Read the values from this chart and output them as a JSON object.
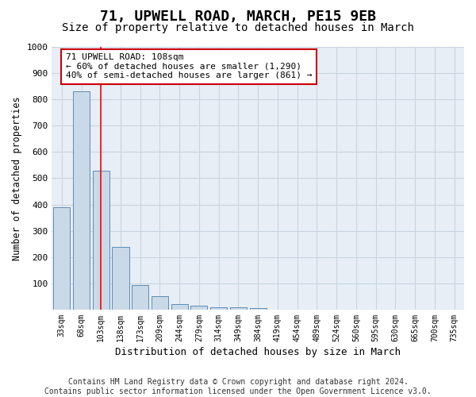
{
  "title": "71, UPWELL ROAD, MARCH, PE15 9EB",
  "subtitle": "Size of property relative to detached houses in March",
  "xlabel": "Distribution of detached houses by size in March",
  "ylabel": "Number of detached properties",
  "bar_color": "#c9d9e8",
  "bar_edge_color": "#5b8db8",
  "categories": [
    "33sqm",
    "68sqm",
    "103sqm",
    "138sqm",
    "173sqm",
    "209sqm",
    "244sqm",
    "279sqm",
    "314sqm",
    "349sqm",
    "384sqm",
    "419sqm",
    "454sqm",
    "489sqm",
    "524sqm",
    "560sqm",
    "595sqm",
    "630sqm",
    "665sqm",
    "700sqm",
    "735sqm"
  ],
  "values": [
    390,
    830,
    530,
    240,
    95,
    50,
    20,
    15,
    10,
    8,
    5,
    0,
    0,
    0,
    0,
    0,
    0,
    0,
    0,
    0,
    0
  ],
  "red_line_index": 2,
  "annotation_text": "71 UPWELL ROAD: 108sqm\n← 60% of detached houses are smaller (1,290)\n40% of semi-detached houses are larger (861) →",
  "annotation_box_facecolor": "#ffffff",
  "annotation_edge_color": "#cc0000",
  "ylim": [
    0,
    1000
  ],
  "yticks": [
    0,
    100,
    200,
    300,
    400,
    500,
    600,
    700,
    800,
    900,
    1000
  ],
  "grid_color": "#c8d4e0",
  "background_color": "#e8eef5",
  "footer_line1": "Contains HM Land Registry data © Crown copyright and database right 2024.",
  "footer_line2": "Contains public sector information licensed under the Open Government Licence v3.0.",
  "title_fontsize": 13,
  "subtitle_fontsize": 10,
  "xlabel_fontsize": 9,
  "ylabel_fontsize": 8.5,
  "annotation_fontsize": 8,
  "footer_fontsize": 7
}
